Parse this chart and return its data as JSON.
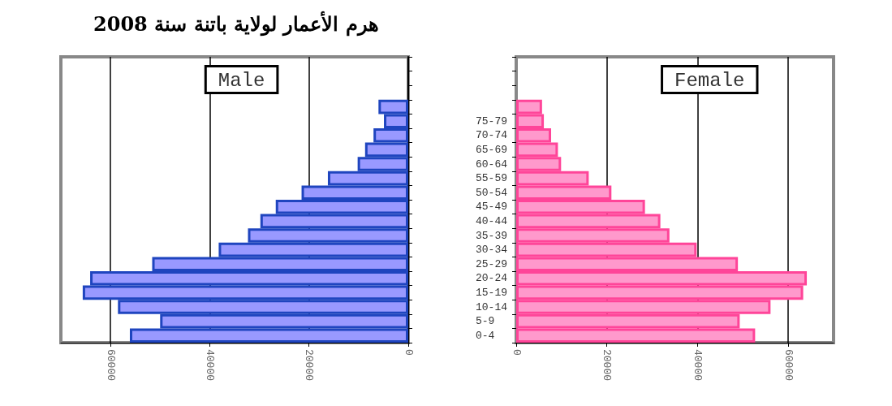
{
  "chart_data": [
    {
      "type": "bar",
      "orientation": "horizontal",
      "title": "هرم الأعمار لولاية باتنة سنة 2008",
      "annotations": [
        "Male"
      ],
      "categories": [
        null,
        null,
        null,
        null,
        null,
        null,
        null,
        null,
        null,
        null,
        null,
        null,
        null,
        null,
        null,
        null,
        null,
        null,
        null,
        null
      ],
      "series": [
        {
          "color": "#9999ff",
          "values": [
            null,
            null,
            null,
            6000,
            4900,
            7000,
            8700,
            10200,
            16200,
            21500,
            26700,
            29800,
            32300,
            38200,
            51600,
            64100,
            65600,
            58500,
            50000,
            56100
          ]
        }
      ],
      "xlim": [
        70000,
        0
      ],
      "xticks": [
        0,
        20000,
        40000,
        60000
      ],
      "grid": "x",
      "tick_labels": "x"
    },
    {
      "type": "bar",
      "orientation": "horizontal",
      "annotations": [
        "Female"
      ],
      "categories": [
        null,
        null,
        null,
        null,
        "75-79",
        "70-74",
        "65-69",
        "60-64",
        "55-59",
        "50-54",
        "45-49",
        "40-44",
        "35-39",
        "30-34",
        "25-29",
        "20-24",
        "15-19",
        "10-14",
        "5-9",
        "0-4"
      ],
      "series": [
        {
          "color": "#ff99cc",
          "values": [
            null,
            null,
            null,
            5700,
            6100,
            7700,
            9200,
            9900,
            16000,
            21000,
            28400,
            31800,
            33800,
            39800,
            48900,
            64100,
            63300,
            56100,
            49300,
            52700
          ]
        }
      ],
      "xlim": [
        0,
        70000
      ],
      "xticks": [
        0,
        20000,
        40000,
        60000
      ],
      "grid": "x"
    }
  ]
}
